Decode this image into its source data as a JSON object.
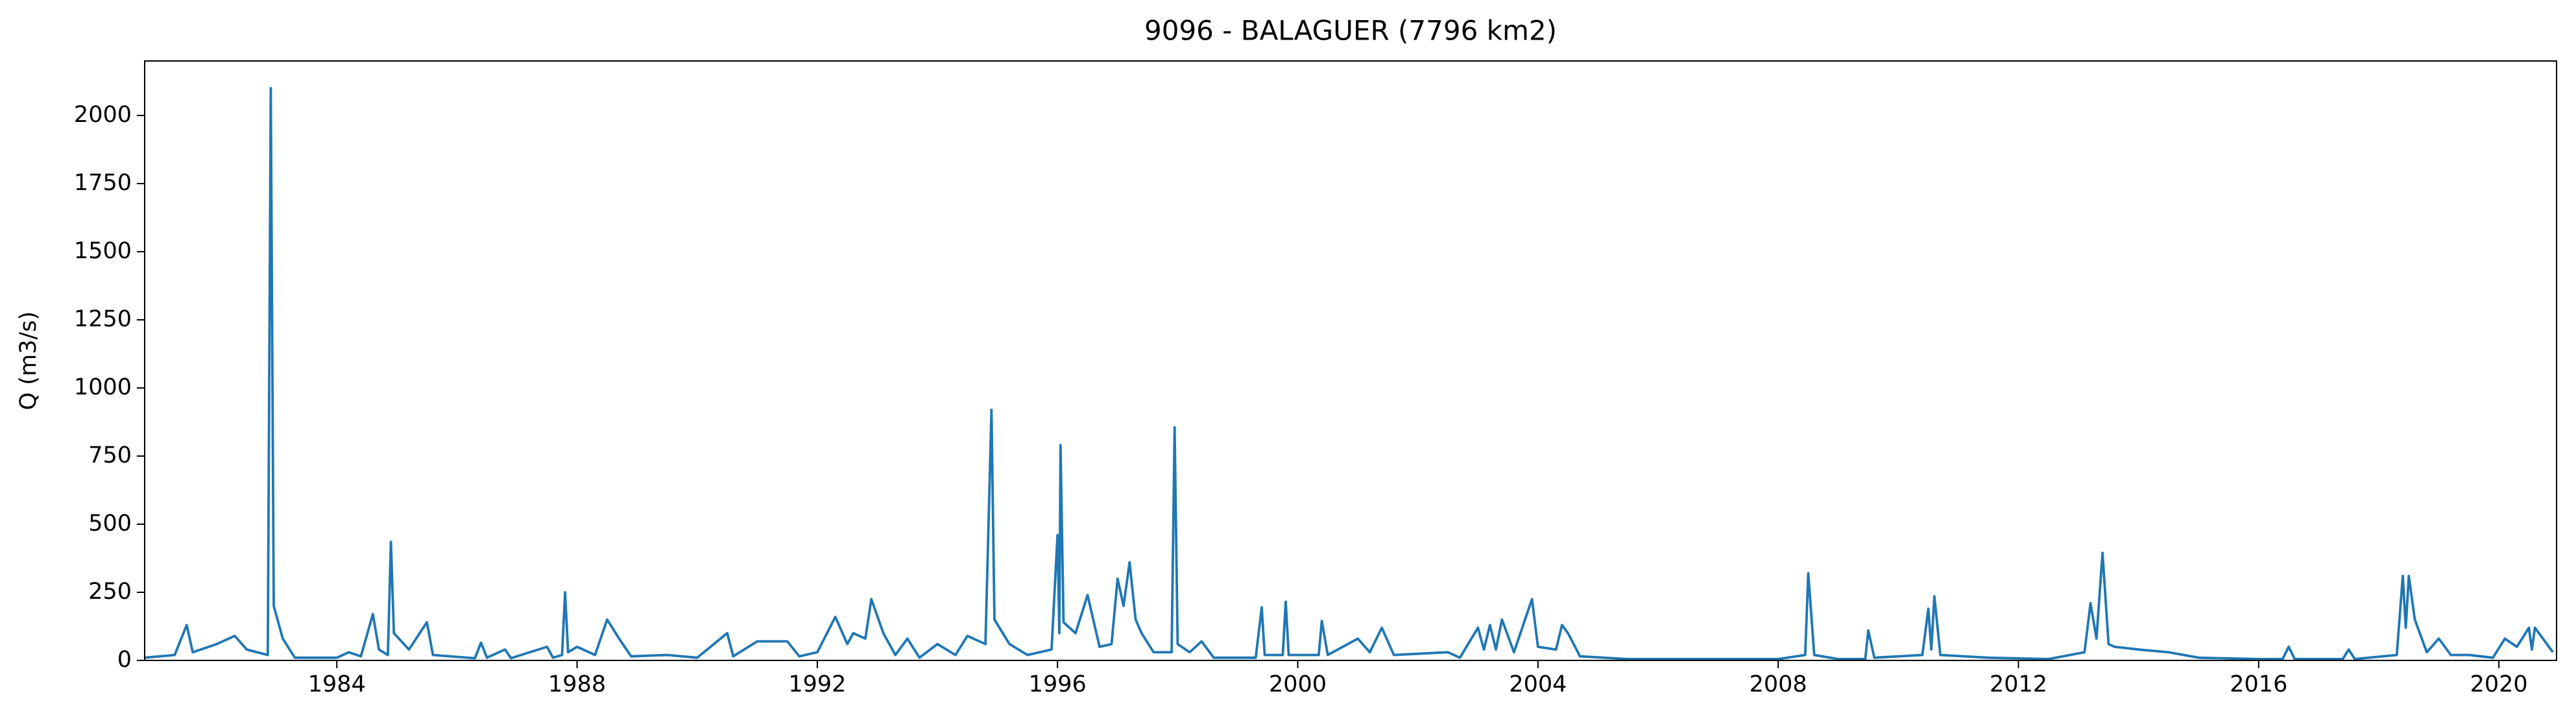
{
  "chart_data": {
    "type": "line",
    "title": "9096 - BALAGUER (7796 km2)",
    "y_label": "Q (m3/s)",
    "x": [
      1980.8,
      1981.3,
      1981.5,
      1981.6,
      1982.0,
      1982.3,
      1982.5,
      1982.85,
      1982.9,
      1982.95,
      1983.1,
      1983.3,
      1984.0,
      1984.2,
      1984.4,
      1984.6,
      1984.7,
      1984.85,
      1984.9,
      1984.95,
      1985.2,
      1985.5,
      1985.6,
      1986.3,
      1986.4,
      1986.5,
      1986.8,
      1986.9,
      1987.5,
      1987.6,
      1987.75,
      1987.8,
      1987.85,
      1988.0,
      1988.3,
      1988.5,
      1988.7,
      1988.9,
      1989.5,
      1990.0,
      1990.5,
      1990.6,
      1991.0,
      1991.5,
      1991.7,
      1992.0,
      1992.3,
      1992.5,
      1992.6,
      1992.8,
      1992.9,
      1993.1,
      1993.3,
      1993.5,
      1993.7,
      1994.0,
      1994.3,
      1994.5,
      1994.8,
      1994.9,
      1994.95,
      1995.2,
      1995.5,
      1995.9,
      1996.0,
      1996.03,
      1996.05,
      1996.1,
      1996.3,
      1996.5,
      1996.7,
      1996.9,
      1997.0,
      1997.1,
      1997.2,
      1997.3,
      1997.4,
      1997.6,
      1997.9,
      1997.95,
      1998.0,
      1998.2,
      1998.4,
      1998.6,
      1999.3,
      1999.4,
      1999.45,
      1999.75,
      1999.8,
      1999.85,
      2000.35,
      2000.4,
      2000.5,
      2001.0,
      2001.2,
      2001.4,
      2001.6,
      2002.5,
      2002.7,
      2003.0,
      2003.1,
      2003.2,
      2003.3,
      2003.4,
      2003.6,
      2003.9,
      2004.0,
      2004.3,
      2004.4,
      2004.5,
      2004.7,
      2005.5,
      2007.0,
      2008.0,
      2008.45,
      2008.5,
      2008.6,
      2009.0,
      2009.45,
      2009.5,
      2009.6,
      2010.4,
      2010.5,
      2010.55,
      2010.6,
      2010.7,
      2011.5,
      2012.5,
      2013.1,
      2013.2,
      2013.3,
      2013.4,
      2013.5,
      2013.6,
      2014.0,
      2014.5,
      2015.0,
      2016.0,
      2016.4,
      2016.5,
      2016.6,
      2017.4,
      2017.5,
      2017.6,
      2018.3,
      2018.4,
      2018.45,
      2018.5,
      2018.6,
      2018.8,
      2019.0,
      2019.2,
      2019.5,
      2019.9,
      2020.1,
      2020.3,
      2020.5,
      2020.55,
      2020.6,
      2020.9
    ],
    "series": [
      {
        "name": "Q",
        "color": "#1f77b4",
        "values": [
          10,
          20,
          130,
          30,
          60,
          90,
          40,
          20,
          2100,
          200,
          80,
          10,
          10,
          30,
          15,
          170,
          40,
          20,
          435,
          100,
          40,
          140,
          20,
          8,
          65,
          10,
          40,
          8,
          50,
          10,
          20,
          250,
          30,
          50,
          20,
          150,
          80,
          15,
          20,
          10,
          100,
          15,
          70,
          70,
          15,
          30,
          160,
          60,
          100,
          80,
          225,
          100,
          20,
          80,
          10,
          60,
          20,
          90,
          60,
          920,
          150,
          60,
          20,
          40,
          460,
          100,
          790,
          140,
          100,
          240,
          50,
          60,
          300,
          200,
          360,
          150,
          100,
          30,
          30,
          855,
          60,
          30,
          70,
          10,
          10,
          195,
          20,
          20,
          215,
          20,
          20,
          145,
          20,
          80,
          30,
          120,
          20,
          30,
          10,
          120,
          40,
          130,
          40,
          150,
          30,
          225,
          50,
          40,
          130,
          100,
          15,
          5,
          5,
          5,
          20,
          320,
          20,
          5,
          5,
          110,
          10,
          20,
          190,
          40,
          235,
          20,
          10,
          5,
          30,
          210,
          80,
          395,
          60,
          50,
          40,
          30,
          10,
          5,
          5,
          50,
          5,
          5,
          40,
          5,
          20,
          310,
          120,
          310,
          150,
          30,
          80,
          20,
          20,
          10,
          80,
          50,
          120,
          40,
          120,
          30
        ]
      }
    ],
    "xlim": [
      1980.8,
      2020.96
    ],
    "ylim": [
      0,
      2200
    ],
    "xticks": [
      1984,
      1988,
      1992,
      1996,
      2000,
      2004,
      2008,
      2012,
      2016,
      2020
    ],
    "yticks": [
      0,
      250,
      500,
      750,
      1000,
      1250,
      1500,
      1750,
      2000
    ]
  }
}
